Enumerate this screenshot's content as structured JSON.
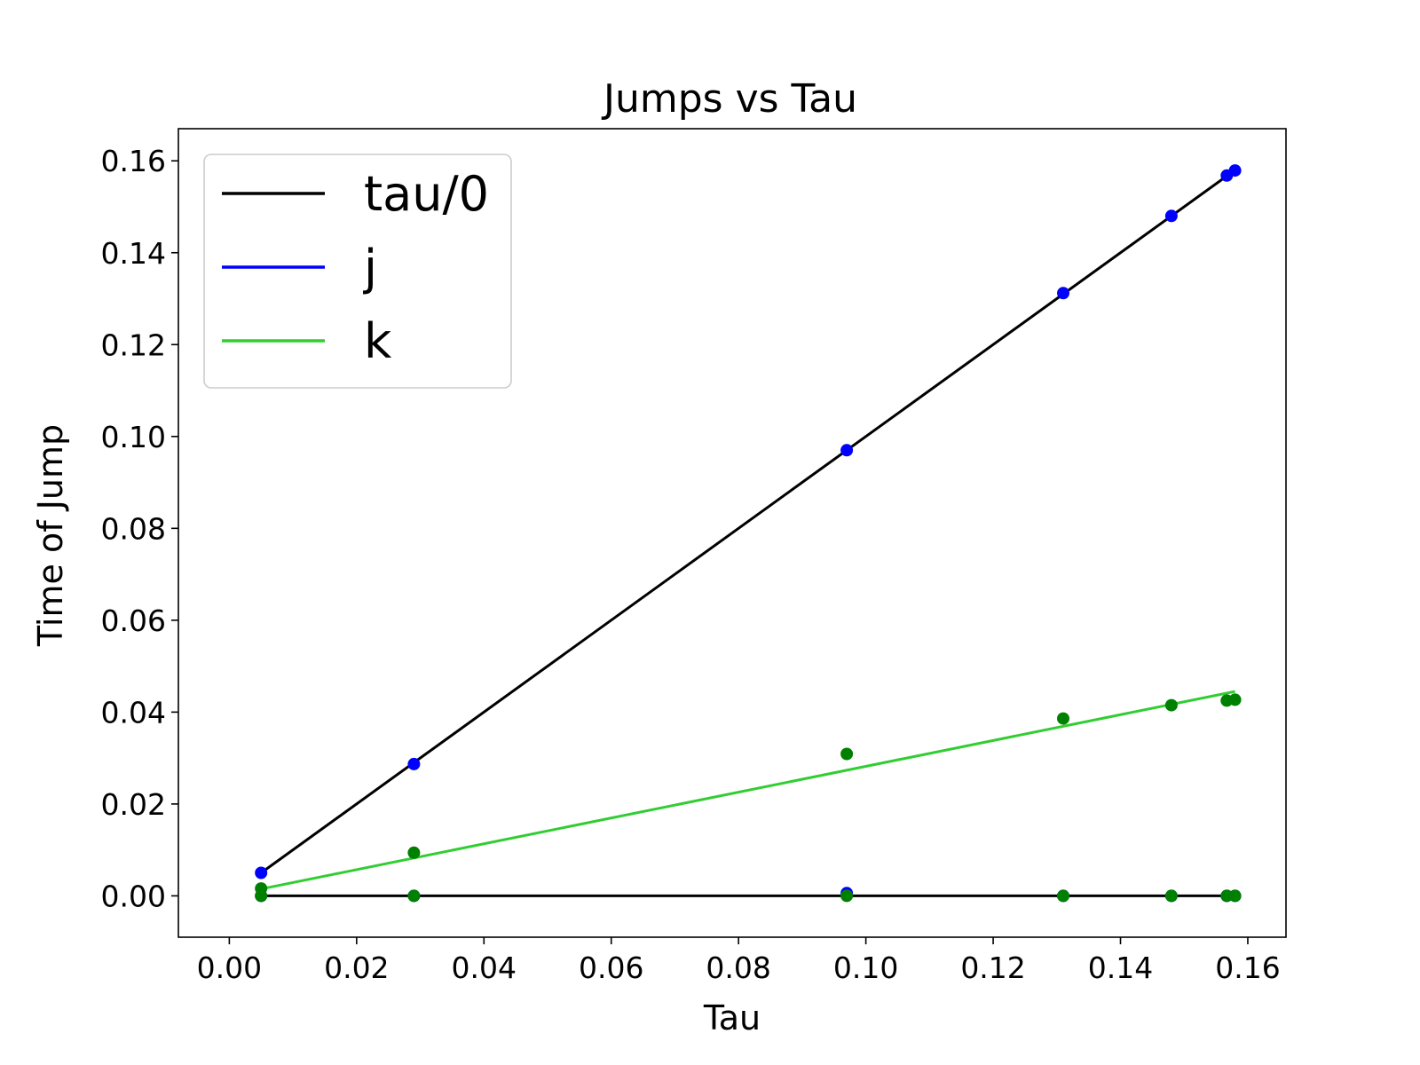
{
  "chart_data": {
    "type": "scatter",
    "title": "Jumps vs Tau",
    "xlabel": "Tau",
    "ylabel": "Time of Jump",
    "xlim": [
      -0.008,
      0.166
    ],
    "ylim": [
      -0.009,
      0.167
    ],
    "xticks": [
      "0.00",
      "0.02",
      "0.04",
      "0.06",
      "0.08",
      "0.10",
      "0.12",
      "0.14",
      "0.16"
    ],
    "yticks": [
      "0.00",
      "0.02",
      "0.04",
      "0.06",
      "0.08",
      "0.10",
      "0.12",
      "0.14",
      "0.16"
    ],
    "grid": false,
    "legend": {
      "placement": "upper-left",
      "entries": [
        {
          "label": "tau/0",
          "color": "#000000"
        },
        {
          "label": "j",
          "color": "#0000ff"
        },
        {
          "label": "k",
          "color": "#32cd32"
        }
      ]
    },
    "lines": [
      {
        "name": "tau/0",
        "color": "#000000",
        "points": [
          [
            0.005,
            0.005
          ],
          [
            0.158,
            0.158
          ]
        ]
      },
      {
        "name": "",
        "color": "#000000",
        "points": [
          [
            0.005,
            0.0
          ],
          [
            0.158,
            0.0
          ]
        ]
      },
      {
        "name": "k",
        "color": "#32cd32",
        "points": [
          [
            0.005,
            0.0015
          ],
          [
            0.158,
            0.0445
          ]
        ]
      }
    ],
    "scatter": [
      {
        "name": "j",
        "color": "#0000ff",
        "points": [
          [
            0.005,
            0.005
          ],
          [
            0.029,
            0.0287
          ],
          [
            0.097,
            0.097
          ],
          [
            0.131,
            0.1312
          ],
          [
            0.148,
            0.148
          ],
          [
            0.1567,
            0.1568
          ],
          [
            0.158,
            0.1579
          ],
          [
            0.005,
            0.0
          ],
          [
            0.029,
            0.0
          ],
          [
            0.097,
            0.0006
          ],
          [
            0.131,
            0.0
          ],
          [
            0.148,
            0.0
          ],
          [
            0.1567,
            0.0
          ],
          [
            0.158,
            0.0
          ]
        ]
      },
      {
        "name": "k",
        "color": "#008000",
        "points": [
          [
            0.005,
            0.0016
          ],
          [
            0.029,
            0.0094
          ],
          [
            0.097,
            0.0309
          ],
          [
            0.131,
            0.0386
          ],
          [
            0.148,
            0.0415
          ],
          [
            0.1567,
            0.0425
          ],
          [
            0.158,
            0.0427
          ],
          [
            0.005,
            0.0
          ],
          [
            0.029,
            0.0
          ],
          [
            0.097,
            0.0
          ],
          [
            0.131,
            0.0
          ],
          [
            0.148,
            0.0
          ],
          [
            0.1567,
            0.0
          ],
          [
            0.158,
            0.0
          ]
        ]
      }
    ]
  }
}
